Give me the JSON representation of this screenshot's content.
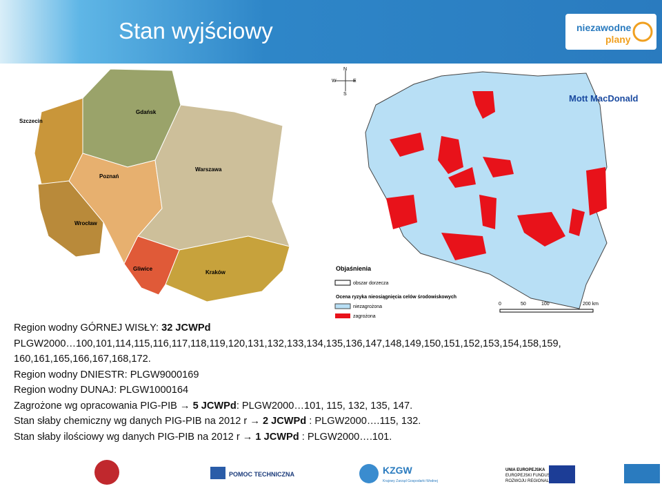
{
  "header": {
    "title": "Stan wyjściowy",
    "logo_top": "niezawodne",
    "logo_bottom": "plany",
    "partner": "Mott MacDonald"
  },
  "left_map": {
    "labels": [
      "Szczecin",
      "Gdańsk",
      "Warszawa",
      "Poznań",
      "Wrocław",
      "Gliwice",
      "Kraków"
    ]
  },
  "right_map": {
    "compass": [
      "N",
      "S",
      "E",
      "W"
    ],
    "legend_title": "Objaśnienia",
    "legend_items": [
      "obszar dorzecza",
      "niezagrożona",
      "zagrożona"
    ],
    "legend_subtitle": "Ocena ryzyka nieosiągnięcia celów środowiskowych",
    "scale": [
      "0",
      "50",
      "100",
      "200 km"
    ]
  },
  "body": {
    "lines": [
      [
        {
          "text": "Region wodny GÓRNEJ WISŁY: ",
          "bold": false
        },
        {
          "text": "32 JCWPd",
          "bold": true
        }
      ],
      [
        {
          "text": "PLGW2000…100,101,114,115,116,117,118,119,120,131,132,133,134,135,136,147,148,149,150,151,152,153,154,158,159,",
          "bold": false
        }
      ],
      [
        {
          "text": "160,161,165,166,167,168,172.",
          "bold": false
        }
      ],
      [
        {
          "text": "Region wodny DNIESTR: PLGW9000169",
          "bold": false
        }
      ],
      [
        {
          "text": "Region wodny DUNAJ: PLGW1000164",
          "bold": false
        }
      ],
      [
        {
          "text": "Zagrożone wg opracowania PIG-PIB ",
          "bold": false
        },
        {
          "text": "→ 5 JCWPd",
          "bold": true
        },
        {
          "text": ": PLGW2000…101, 115, 132, 135, 147.",
          "bold": false
        }
      ],
      [
        {
          "text": "Stan słaby chemiczny wg danych PIG-PIB na 2012 r ",
          "bold": false
        },
        {
          "text": "→ 2 JCWPd",
          "bold": true
        },
        {
          "text": " : PLGW2000….115, 132.",
          "bold": false
        }
      ],
      [
        {
          "text": "Stan słaby ilościowy wg danych PIG-PIB na 2012 r ",
          "bold": false
        },
        {
          "text": "→ 1 JCWPd",
          "bold": true
        },
        {
          "text": " : PLGW2000….101.",
          "bold": false
        }
      ]
    ]
  },
  "footer": {
    "logos": [
      "POMOC TECHNICZNA",
      "KZGW",
      "Krajowy Zarząd Gospodarki Wodnej",
      "UNIA EUROPEJSKA",
      "EUROPEJSKI FUNDUSZ",
      "ROZWOJU REGIONALNEGO"
    ]
  }
}
